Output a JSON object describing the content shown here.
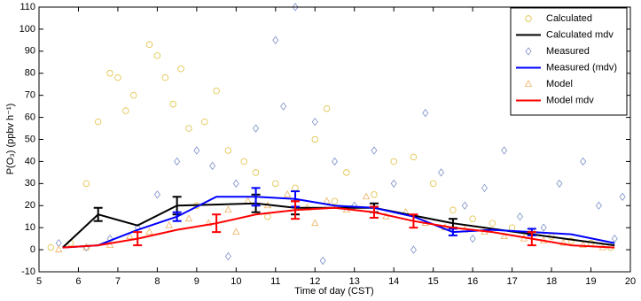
{
  "chart_data": {
    "type": "line",
    "xlabel": "Time of day (CST)",
    "ylabel": "P(O₃) (ppbv h⁻¹)",
    "xlim": [
      5,
      20
    ],
    "xticks": [
      5,
      6,
      7,
      8,
      9,
      10,
      11,
      12,
      13,
      14,
      15,
      16,
      17,
      18,
      19,
      20
    ],
    "ylim": [
      -10,
      110
    ],
    "yticks": [
      -10,
      0,
      10,
      20,
      30,
      40,
      50,
      60,
      70,
      80,
      90,
      100,
      110
    ],
    "legend": "upper right",
    "series": [
      {
        "name": "Calculated",
        "type": "scatter",
        "marker": "circle",
        "color": "#e0c040",
        "x": [
          6.2,
          6.5,
          6.8,
          7.0,
          7.2,
          7.4,
          7.8,
          8.0,
          8.2,
          8.4,
          8.6,
          8.8,
          9.2,
          9.5,
          9.8,
          10.2,
          10.5,
          11.0,
          11.5,
          12.0,
          12.3,
          12.8,
          13.5,
          14.0,
          14.5,
          15.0,
          15.5,
          16.0,
          16.5,
          17.0,
          17.5,
          18.0,
          18.5,
          19.0,
          19.5,
          5.3,
          5.8,
          9.0,
          10.8,
          12.5
        ],
        "values": [
          30,
          58,
          80,
          78,
          63,
          70,
          93,
          88,
          78,
          66,
          82,
          55,
          58,
          72,
          45,
          40,
          35,
          30,
          28,
          50,
          64,
          35,
          25,
          40,
          42,
          30,
          18,
          14,
          12,
          10,
          8,
          6,
          4,
          3,
          1,
          1,
          3,
          20,
          15,
          22
        ]
      },
      {
        "name": "Calculated mdv",
        "type": "line",
        "color": "#000000",
        "x": [
          5.6,
          6.5,
          7.5,
          8.5,
          10.5,
          11.5,
          13.5,
          15.5,
          17.5,
          19.6
        ],
        "values": [
          1,
          16,
          11,
          20,
          21,
          19,
          19,
          12,
          7,
          2
        ],
        "errors": [
          null,
          3,
          null,
          4,
          4,
          3,
          2,
          2,
          null,
          null
        ]
      },
      {
        "name": "Measured",
        "type": "scatter",
        "marker": "diamond",
        "color": "#7c8fc8",
        "x": [
          5.5,
          6.2,
          6.8,
          7.5,
          8.0,
          8.5,
          9.0,
          9.4,
          10.0,
          10.5,
          11.0,
          11.5,
          11.2,
          12.0,
          12.5,
          13.0,
          13.5,
          14.0,
          14.8,
          15.2,
          15.8,
          16.3,
          16.8,
          17.2,
          17.8,
          18.2,
          18.8,
          19.2,
          19.6,
          19.8,
          12.2,
          9.8,
          14.5,
          16.0
        ],
        "values": [
          3,
          1,
          5,
          10,
          25,
          40,
          45,
          38,
          30,
          55,
          95,
          110,
          65,
          58,
          40,
          20,
          45,
          30,
          62,
          35,
          20,
          28,
          45,
          15,
          10,
          30,
          40,
          20,
          5,
          24,
          -5,
          -3,
          0,
          5
        ]
      },
      {
        "name": "Measured (mdv)",
        "type": "line",
        "color": "#0000ff",
        "x": [
          5.6,
          6.5,
          7.5,
          8.5,
          9.5,
          10.5,
          11.5,
          12.5,
          13.5,
          14.5,
          15.5,
          16.5,
          17.5,
          18.5,
          19.6
        ],
        "values": [
          1,
          2,
          9,
          15,
          24,
          24,
          23,
          20,
          19,
          15,
          8,
          9,
          8,
          7,
          3
        ],
        "errors": [
          null,
          null,
          null,
          2,
          null,
          4,
          3.5,
          null,
          null,
          null,
          1.5,
          null,
          1.5,
          null,
          null
        ]
      },
      {
        "name": "Model",
        "type": "scatter",
        "marker": "triangle",
        "color": "#f0b060",
        "x": [
          5.5,
          6.2,
          6.8,
          7.3,
          7.8,
          8.3,
          8.8,
          9.3,
          9.8,
          10.3,
          10.8,
          11.3,
          11.8,
          12.3,
          12.8,
          13.3,
          13.8,
          14.3,
          14.8,
          15.3,
          15.8,
          16.3,
          16.8,
          17.3,
          17.8,
          18.3,
          18.8,
          19.3,
          10.0,
          12.0
        ],
        "values": [
          0,
          1,
          2,
          6,
          8,
          11,
          14,
          12,
          18,
          22,
          20,
          25,
          19,
          22,
          18,
          24,
          15,
          17,
          12,
          10,
          9,
          8,
          6,
          5,
          4,
          3,
          2,
          1,
          8,
          12
        ]
      },
      {
        "name": "Model mdv",
        "type": "line",
        "color": "#ff0000",
        "x": [
          5.6,
          6.5,
          7.5,
          8.5,
          9.5,
          10.5,
          11.5,
          12.5,
          13.5,
          14.5,
          15.5,
          16.5,
          17.5,
          18.5,
          19.6
        ],
        "values": [
          1,
          2,
          5,
          9,
          12,
          16,
          18,
          19,
          17,
          13,
          10,
          8,
          5,
          2,
          1
        ],
        "errors": [
          null,
          null,
          3,
          null,
          4,
          null,
          4,
          null,
          2.5,
          3,
          null,
          null,
          3,
          null,
          null
        ]
      }
    ]
  }
}
